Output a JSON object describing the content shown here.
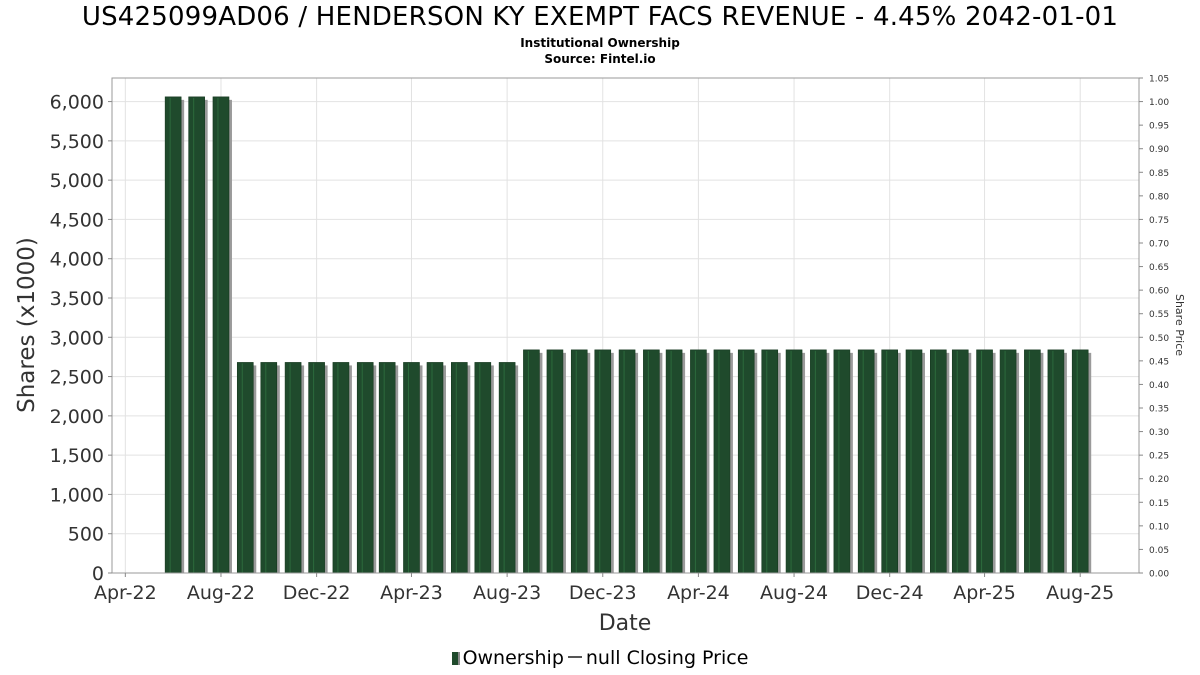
{
  "chart_data": {
    "type": "bar",
    "title": "US425099AD06 / HENDERSON KY EXEMPT FACS REVENUE - 4.45% 2042-01-01",
    "subtitle_line1": "Institutional Ownership",
    "subtitle_line2": "Source: Fintel.io",
    "xlabel": "Date",
    "ylabel": "Shares (x1000)",
    "y2label": "Share Price",
    "ylim": [
      0,
      6300
    ],
    "y2lim": [
      0,
      1.05
    ],
    "x_range": [
      "2022-03-15",
      "2025-10-15"
    ],
    "y_ticks": [
      0,
      500,
      1000,
      1500,
      2000,
      2500,
      3000,
      3500,
      4000,
      4500,
      5000,
      5500,
      6000
    ],
    "y_tick_labels": [
      "0",
      "500",
      "1,000",
      "1,500",
      "2,000",
      "2,500",
      "3,000",
      "3,500",
      "4,000",
      "4,500",
      "5,000",
      "5,500",
      "6,000"
    ],
    "y2_ticks": [
      0.0,
      0.05,
      0.1,
      0.15,
      0.2,
      0.25,
      0.3,
      0.35,
      0.4,
      0.45,
      0.5,
      0.55,
      0.6,
      0.65,
      0.7,
      0.75,
      0.8,
      0.85,
      0.9,
      0.95,
      1.0,
      1.05
    ],
    "y2_tick_labels": [
      "0.00",
      "0.05",
      "0.10",
      "0.15",
      "0.20",
      "0.25",
      "0.30",
      "0.35",
      "0.40",
      "0.45",
      "0.50",
      "0.55",
      "0.60",
      "0.65",
      "0.70",
      "0.75",
      "0.80",
      "0.85",
      "0.90",
      "0.95",
      "1.00",
      "1.05"
    ],
    "x_ticks": [
      "2022-04-01",
      "2022-08-01",
      "2022-12-01",
      "2023-04-01",
      "2023-08-01",
      "2023-12-01",
      "2024-04-01",
      "2024-08-01",
      "2024-12-01",
      "2025-04-01",
      "2025-08-01"
    ],
    "x_tick_labels": [
      "Apr-22",
      "Aug-22",
      "Dec-22",
      "Apr-23",
      "Aug-23",
      "Dec-23",
      "Apr-24",
      "Aug-24",
      "Dec-24",
      "Apr-25",
      "Aug-25"
    ],
    "grid": true,
    "legend_position": "bottom-center",
    "series": [
      {
        "name": "Ownership",
        "color": "#1f4a2c",
        "x": [
          "2022-06-01",
          "2022-07-01",
          "2022-08-01",
          "2022-09-01",
          "2022-10-01",
          "2022-11-01",
          "2022-12-01",
          "2023-01-01",
          "2023-02-01",
          "2023-03-01",
          "2023-04-01",
          "2023-05-01",
          "2023-06-01",
          "2023-07-01",
          "2023-08-01",
          "2023-09-01",
          "2023-10-01",
          "2023-11-01",
          "2023-12-01",
          "2024-01-01",
          "2024-02-01",
          "2024-03-01",
          "2024-04-01",
          "2024-05-01",
          "2024-06-01",
          "2024-07-01",
          "2024-08-01",
          "2024-09-01",
          "2024-10-01",
          "2024-11-01",
          "2024-12-01",
          "2025-01-01",
          "2025-02-01",
          "2025-03-01",
          "2025-04-01",
          "2025-05-01",
          "2025-06-01",
          "2025-07-01",
          "2025-08-01"
        ],
        "values": [
          6060,
          6060,
          6060,
          2680,
          2680,
          2680,
          2680,
          2680,
          2680,
          2680,
          2680,
          2680,
          2680,
          2680,
          2680,
          2840,
          2840,
          2840,
          2840,
          2840,
          2840,
          2840,
          2840,
          2840,
          2840,
          2840,
          2840,
          2840,
          2840,
          2840,
          2840,
          2840,
          2840,
          2840,
          2840,
          2840,
          2840,
          2840,
          2840
        ]
      },
      {
        "name": "null Closing Price",
        "color": "#555555",
        "x": [],
        "values": []
      }
    ]
  }
}
